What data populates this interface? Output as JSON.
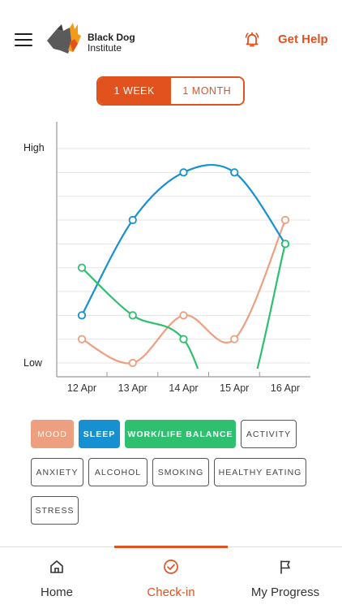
{
  "header": {
    "menu_icon": "hamburger-icon",
    "logo_line1": "Black Dog",
    "logo_line2": "Institute",
    "bell_icon": "bell-icon",
    "get_help": "Get Help"
  },
  "range_toggle": {
    "week": "1 WEEK",
    "month": "1 MONTH",
    "selected": "1 WEEK"
  },
  "chart_data": {
    "type": "line",
    "x": [
      "12 Apr",
      "13 Apr",
      "14 Apr",
      "15 Apr",
      "16 Apr"
    ],
    "ytick_labels": [
      "Low",
      "High"
    ],
    "ylim": [
      0,
      9
    ],
    "grid": true,
    "series": [
      {
        "name": "Mood",
        "color": "#ee9f7f",
        "values": [
          1,
          0,
          2,
          1,
          6
        ]
      },
      {
        "name": "Sleep",
        "color": "#1790d1",
        "values": [
          2,
          6,
          8,
          8,
          5
        ]
      },
      {
        "name": "Work/Life Balance",
        "color": "#2ebf6f",
        "values": [
          4,
          2,
          1,
          null,
          5
        ]
      }
    ]
  },
  "filters": [
    {
      "label": "MOOD",
      "state": "active",
      "color": "#ee9f7f"
    },
    {
      "label": "SLEEP",
      "state": "active",
      "color": "#1790d1"
    },
    {
      "label": "WORK/LIFE BALANCE",
      "state": "active",
      "color": "#2ebf6f"
    },
    {
      "label": "ACTIVITY",
      "state": "inactive"
    },
    {
      "label": "ANXIETY",
      "state": "inactive"
    },
    {
      "label": "ALCOHOL",
      "state": "inactive"
    },
    {
      "label": "SMOKING",
      "state": "inactive"
    },
    {
      "label": "HEALTHY EATING",
      "state": "inactive"
    },
    {
      "label": "STRESS",
      "state": "inactive"
    }
  ],
  "bottom_nav": [
    {
      "label": "Home",
      "icon": "home-icon"
    },
    {
      "label": "Check-in",
      "icon": "check-circle-icon",
      "active": true
    },
    {
      "label": "My Progress",
      "icon": "flag-icon"
    }
  ],
  "colors": {
    "accent": "#e2521f"
  }
}
